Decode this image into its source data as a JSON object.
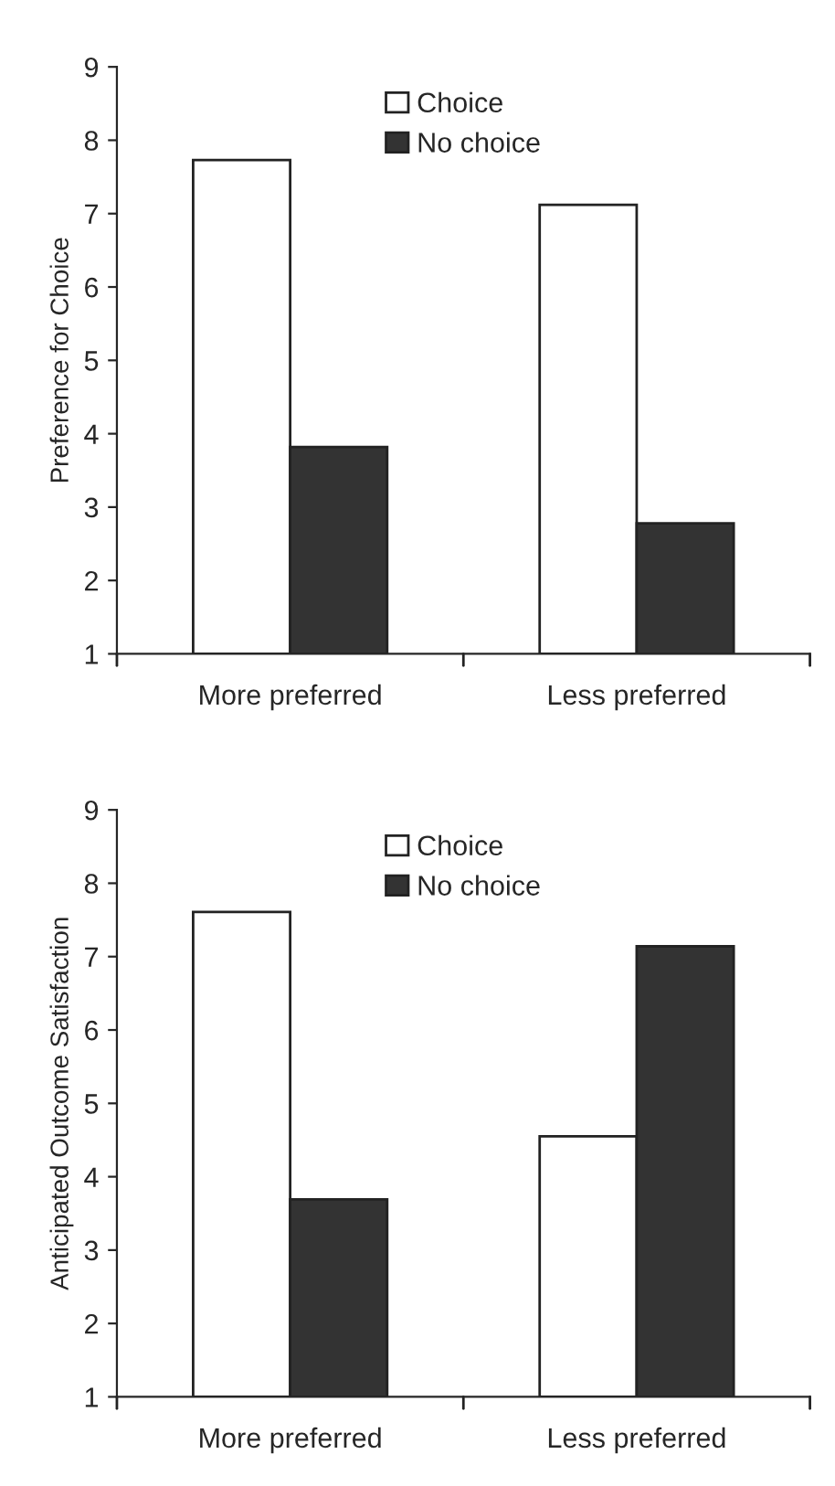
{
  "chart_data": [
    {
      "type": "bar",
      "ylabel": "Preference for Choice",
      "categories": [
        "More preferred",
        "Less preferred"
      ],
      "ylim": [
        1,
        9
      ],
      "yticks": [
        1,
        2,
        3,
        4,
        5,
        6,
        7,
        8,
        9
      ],
      "legend": "top",
      "grid": false,
      "series": [
        {
          "name": "Choice",
          "color": "#ffffff",
          "values": [
            7.73,
            7.12
          ]
        },
        {
          "name": "No choice",
          "color": "#333333",
          "values": [
            3.82,
            2.78
          ]
        }
      ]
    },
    {
      "type": "bar",
      "ylabel": "Anticipated Outcome Satisfaction",
      "categories": [
        "More preferred",
        "Less preferred"
      ],
      "ylim": [
        1,
        9
      ],
      "yticks": [
        1,
        2,
        3,
        4,
        5,
        6,
        7,
        8,
        9
      ],
      "legend": "top",
      "grid": false,
      "series": [
        {
          "name": "Choice",
          "color": "#ffffff",
          "values": [
            7.61,
            4.55
          ]
        },
        {
          "name": "No choice",
          "color": "#333333",
          "values": [
            3.69,
            7.14
          ]
        }
      ]
    }
  ]
}
